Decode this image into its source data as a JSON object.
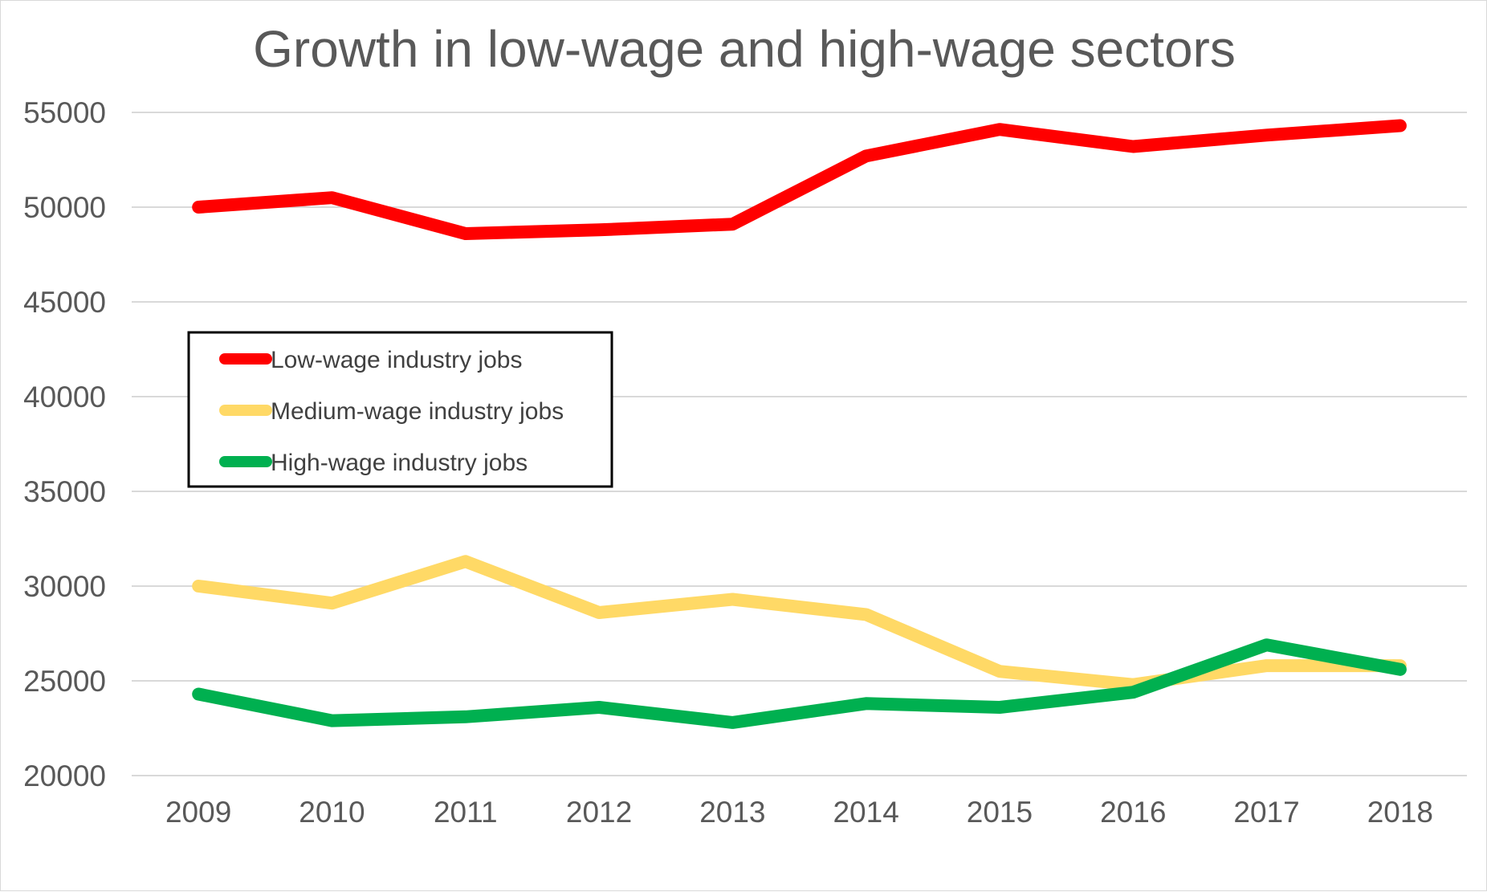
{
  "chart_data": {
    "type": "line",
    "title": "Growth in low-wage and high-wage sectors",
    "xlabel": "",
    "ylabel": "",
    "categories": [
      "2009",
      "2010",
      "2011",
      "2012",
      "2013",
      "2014",
      "2015",
      "2016",
      "2017",
      "2018"
    ],
    "ylim": [
      20000,
      55000
    ],
    "yticks": [
      20000,
      25000,
      30000,
      35000,
      40000,
      45000,
      50000,
      55000
    ],
    "ytick_labels": [
      "20000",
      "25000",
      "30000",
      "35000",
      "40000",
      "45000",
      "50000",
      "55000"
    ],
    "grid": "horizontal",
    "legend_position": "left, inside plot",
    "series": [
      {
        "name": "Low-wage industry jobs",
        "color": "#ff0000",
        "values": [
          50000,
          50500,
          48600,
          48800,
          49100,
          52700,
          54100,
          53200,
          53800,
          54300
        ]
      },
      {
        "name": "Medium-wage industry jobs",
        "color": "#ffd966",
        "values": [
          30000,
          29100,
          31300,
          28600,
          29300,
          28500,
          25500,
          24800,
          25800,
          25800
        ]
      },
      {
        "name": "High-wage industry jobs",
        "color": "#00b050",
        "values": [
          24300,
          22900,
          23100,
          23600,
          22800,
          23800,
          23600,
          24400,
          26900,
          25600
        ]
      }
    ]
  }
}
